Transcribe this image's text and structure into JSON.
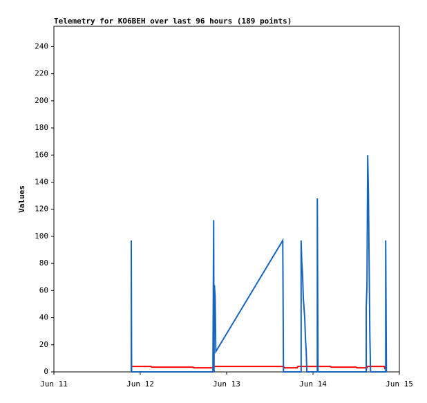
{
  "chart_data": {
    "type": "line",
    "title": "Telemetry for KO6BEH over last 96 hours (189 points)",
    "y_label": "Values",
    "xlim": [
      0,
      96
    ],
    "xticks": [
      {
        "value": 0,
        "label": "Jun 11"
      },
      {
        "value": 24,
        "label": "Jun 12"
      },
      {
        "value": 48,
        "label": "Jun 13"
      },
      {
        "value": 72,
        "label": "Jun 14"
      },
      {
        "value": 96,
        "label": "Jun 15"
      }
    ],
    "ylim": [
      0,
      255
    ],
    "yticks": [
      0,
      20,
      40,
      60,
      80,
      100,
      120,
      140,
      160,
      180,
      200,
      220,
      240
    ],
    "series": [
      {
        "color": "#ff0000",
        "x": [
          21.5,
          27,
          27.2,
          38.7,
          38.9,
          44.4,
          44.6,
          63.8,
          64,
          67.6,
          67.8,
          76.8,
          77,
          84,
          84.2,
          87,
          87.2,
          91.8,
          92
        ],
        "values": [
          4,
          4,
          3.5,
          3.5,
          3,
          3,
          4,
          4,
          3,
          3,
          4,
          4,
          3.5,
          3.5,
          3,
          3,
          4,
          4,
          2
        ]
      },
      {
        "color": "#1565c0",
        "x": [
          21.5,
          21.5,
          21.6,
          44.2,
          44.2,
          44.4,
          44.5,
          44.6,
          44.8,
          45.0,
          63.6,
          63.8,
          68.7,
          68.7,
          68.9,
          69.1,
          69.3,
          69.7,
          69.9,
          70.1,
          70.3,
          73.2,
          73.2,
          73.4,
          86.8,
          86.8,
          87.0,
          87.2,
          87.4,
          87.6,
          87.8,
          88.0,
          92.2,
          92.2,
          92.4
        ],
        "values": [
          0,
          97,
          0,
          0,
          8,
          112,
          0,
          64,
          56,
          15,
          97,
          0,
          0,
          97,
          80,
          72,
          55,
          40,
          25,
          16,
          0,
          0,
          128,
          0,
          0,
          48,
          64,
          160,
          133,
          80,
          27,
          0,
          0,
          97,
          0
        ]
      }
    ]
  }
}
